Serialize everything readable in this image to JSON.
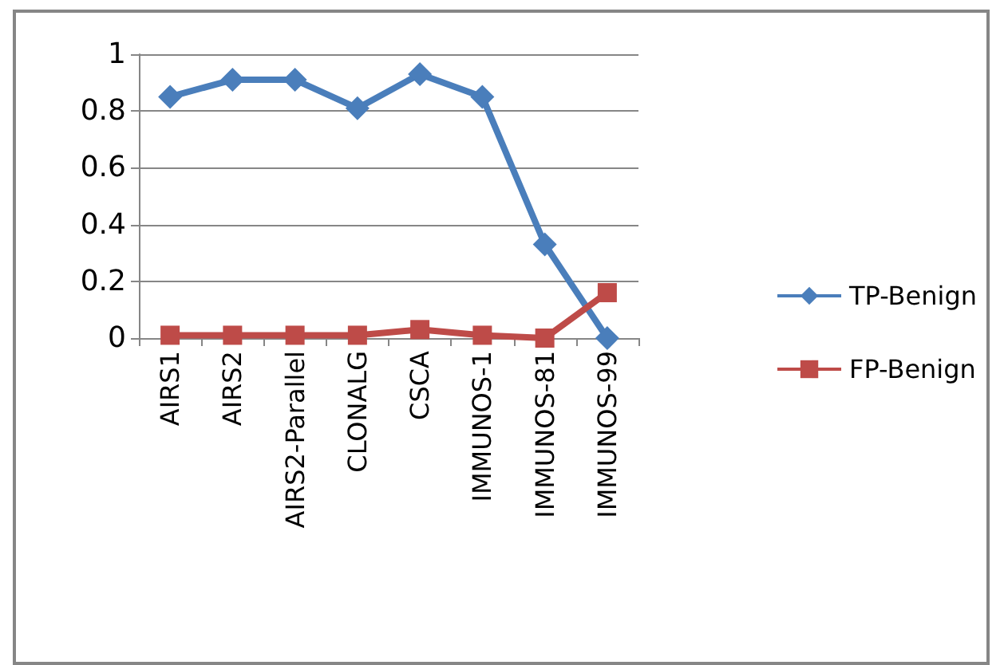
{
  "chart_data": {
    "type": "line",
    "categories": [
      "AIRS1",
      "AIRS2",
      "AIRS2-Parallel",
      "CLONALG",
      "CSCA",
      "IMMUNOS-1",
      "IMMUNOS-81",
      "IMMUNOS-99"
    ],
    "series": [
      {
        "name": "TP-Benign",
        "color": "#4a7ebb",
        "marker": "diamond",
        "values": [
          0.85,
          0.91,
          0.91,
          0.81,
          0.93,
          0.85,
          0.33,
          0
        ]
      },
      {
        "name": "FP-Benign",
        "color": "#be4b48",
        "marker": "square",
        "values": [
          0.01,
          0.01,
          0.01,
          0.01,
          0.03,
          0.01,
          0,
          0.16
        ]
      }
    ],
    "ylim": [
      0,
      1
    ],
    "yticks": [
      0,
      0.2,
      0.4,
      0.6,
      0.8,
      1
    ],
    "grid": "y",
    "legend": "right",
    "line_style": "solid"
  }
}
